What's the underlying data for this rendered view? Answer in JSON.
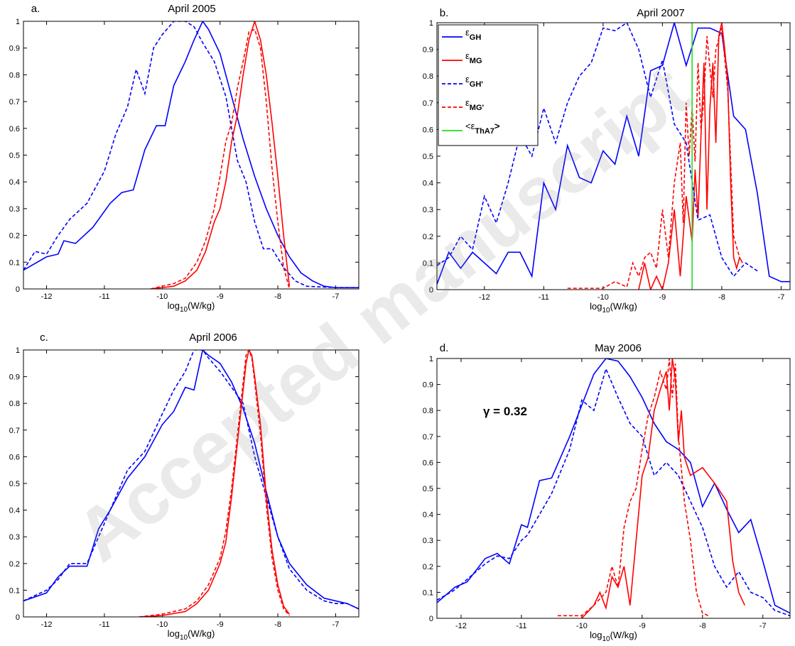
{
  "watermark": "Accepted manuscript",
  "chart_data": [
    {
      "type": "line",
      "panel_label": "a.",
      "title": "April 2005",
      "xlabel": [
        "log",
        "10",
        "(W/kg)"
      ],
      "xlim": [
        -12.4,
        -6.6
      ],
      "xticks": [
        -12,
        -11,
        -10,
        -9,
        -8,
        -7
      ],
      "ylim": [
        0,
        1
      ],
      "yticks": [
        0,
        0.1,
        0.2,
        0.3,
        0.4,
        0.5,
        0.6,
        0.7,
        0.8,
        0.9,
        1
      ],
      "series": [
        {
          "color": "#0000ff",
          "dash": false,
          "x": [
            -12.4,
            -12.0,
            -11.8,
            -11.7,
            -11.5,
            -11.2,
            -10.9,
            -10.7,
            -10.5,
            -10.3,
            -10.1,
            -9.95,
            -9.8,
            -9.6,
            -9.45,
            -9.3,
            -9.2,
            -9.0,
            -8.8,
            -8.6,
            -8.4,
            -8.2,
            -8.0,
            -7.8,
            -7.6,
            -7.4,
            -7.2,
            -7.0,
            -6.6
          ],
          "values": [
            0.07,
            0.12,
            0.13,
            0.18,
            0.17,
            0.23,
            0.32,
            0.36,
            0.37,
            0.52,
            0.61,
            0.61,
            0.76,
            0.85,
            0.93,
            1.0,
            0.97,
            0.88,
            0.72,
            0.56,
            0.42,
            0.3,
            0.2,
            0.12,
            0.06,
            0.03,
            0.01,
            0.005,
            0.005
          ]
        },
        {
          "color": "#0000ff",
          "dash": true,
          "x": [
            -12.4,
            -12.2,
            -12.0,
            -11.8,
            -11.6,
            -11.3,
            -11.0,
            -10.8,
            -10.6,
            -10.45,
            -10.3,
            -10.15,
            -10.0,
            -9.8,
            -9.6,
            -9.45,
            -9.3,
            -9.1,
            -8.9,
            -8.7,
            -8.55,
            -8.4,
            -8.25,
            -8.1,
            -7.9,
            -7.7,
            -7.5,
            -7.0,
            -6.6
          ],
          "values": [
            0.07,
            0.14,
            0.13,
            0.2,
            0.26,
            0.32,
            0.44,
            0.58,
            0.68,
            0.82,
            0.73,
            0.9,
            0.95,
            1.0,
            1.0,
            0.98,
            0.92,
            0.85,
            0.72,
            0.48,
            0.4,
            0.25,
            0.15,
            0.15,
            0.08,
            0.03,
            0.01,
            0.005,
            0.005
          ]
        },
        {
          "color": "#ff0000",
          "dash": false,
          "x": [
            -10.2,
            -10.0,
            -9.8,
            -9.6,
            -9.4,
            -9.25,
            -9.1,
            -9.0,
            -8.9,
            -8.8,
            -8.7,
            -8.6,
            -8.5,
            -8.4,
            -8.3,
            -8.2,
            -8.1,
            -8.0,
            -7.9,
            -7.8
          ],
          "values": [
            0,
            0.005,
            0.01,
            0.03,
            0.07,
            0.14,
            0.25,
            0.3,
            0.4,
            0.55,
            0.65,
            0.8,
            0.93,
            1.0,
            0.93,
            0.8,
            0.62,
            0.42,
            0.2,
            0.01
          ]
        },
        {
          "color": "#ff0000",
          "dash": true,
          "x": [
            -10.2,
            -10.0,
            -9.8,
            -9.6,
            -9.4,
            -9.25,
            -9.1,
            -9.0,
            -8.9,
            -8.8,
            -8.7,
            -8.6,
            -8.5,
            -8.4,
            -8.3,
            -8.2,
            -8.1,
            -8.0,
            -7.9,
            -7.8
          ],
          "values": [
            0,
            0.01,
            0.02,
            0.04,
            0.1,
            0.18,
            0.3,
            0.42,
            0.55,
            0.62,
            0.75,
            0.85,
            0.96,
            0.97,
            0.9,
            0.7,
            0.45,
            0.25,
            0.08,
            0
          ]
        }
      ]
    },
    {
      "type": "line",
      "panel_label": "b.",
      "title": "April 2007",
      "xlabel": [
        "log",
        "10",
        "(W/kg)"
      ],
      "xlim": [
        -12.8,
        -6.85
      ],
      "xticks": [
        -12,
        -11,
        -10,
        -9,
        -8,
        -7
      ],
      "ylim": [
        0,
        1
      ],
      "yticks": [
        0,
        0.1,
        0.2,
        0.3,
        0.4,
        0.5,
        0.6,
        0.7,
        0.8,
        0.9,
        1
      ],
      "series": [
        {
          "name": "ε",
          "name_sub": "GH",
          "color": "#0000ff",
          "dash": false,
          "x": [
            -12.8,
            -12.6,
            -12.4,
            -12.2,
            -12.0,
            -11.8,
            -11.6,
            -11.4,
            -11.2,
            -11.0,
            -10.8,
            -10.6,
            -10.4,
            -10.2,
            -10.0,
            -9.8,
            -9.6,
            -9.4,
            -9.2,
            -9.0,
            -8.8,
            -8.6,
            -8.4,
            -8.2,
            -8.0,
            -7.8,
            -7.6,
            -7.4,
            -7.2,
            -7.0,
            -6.85
          ],
          "values": [
            0.02,
            0.14,
            0.08,
            0.14,
            0.1,
            0.06,
            0.14,
            0.14,
            0.05,
            0.4,
            0.3,
            0.54,
            0.42,
            0.4,
            0.52,
            0.47,
            0.65,
            0.5,
            0.82,
            0.84,
            1.0,
            0.84,
            0.98,
            0.98,
            0.96,
            0.65,
            0.6,
            0.36,
            0.05,
            0.03,
            0.03
          ]
        },
        {
          "name": "ε",
          "name_sub": "MG",
          "color": "#ff0000",
          "dash": false,
          "x": [
            -9.4,
            -9.3,
            -9.2,
            -9.1,
            -9.0,
            -8.9,
            -8.8,
            -8.7,
            -8.6,
            -8.5,
            -8.45,
            -8.4,
            -8.35,
            -8.3,
            -8.25,
            -8.2,
            -8.15,
            -8.1,
            -8.05,
            -8.0,
            -7.95,
            -7.9,
            -7.85,
            -7.8,
            -7.75,
            -7.7,
            -7.65
          ],
          "values": [
            0,
            0.1,
            0,
            0.05,
            0.0,
            0.1,
            0.3,
            0.05,
            0.35,
            0.18,
            0.45,
            0.27,
            0.58,
            0.85,
            0.3,
            0.68,
            0.85,
            0.55,
            0.95,
            1.0,
            0.9,
            0.78,
            0.4,
            0.12,
            0.08,
            0.12,
            0.1
          ]
        },
        {
          "name": "ε",
          "name_sub": "GH'",
          "color": "#0000ff",
          "dash": true,
          "x": [
            -12.8,
            -12.6,
            -12.4,
            -12.2,
            -12.0,
            -11.8,
            -11.6,
            -11.4,
            -11.2,
            -11.0,
            -10.8,
            -10.6,
            -10.4,
            -10.2,
            -10.0,
            -9.8,
            -9.6,
            -9.4,
            -9.2,
            -9.0,
            -8.8,
            -8.6,
            -8.4,
            -8.2,
            -8.0,
            -7.8,
            -7.6,
            -7.4
          ],
          "values": [
            0.09,
            0.12,
            0.2,
            0.15,
            0.35,
            0.25,
            0.4,
            0.58,
            0.5,
            0.68,
            0.55,
            0.7,
            0.8,
            0.85,
            0.98,
            0.97,
            1.0,
            0.9,
            0.72,
            0.86,
            0.62,
            0.55,
            0.26,
            0.28,
            0.12,
            0.05,
            0.1,
            0.07
          ]
        },
        {
          "name": "ε",
          "name_sub": "MG'",
          "color": "#ff0000",
          "dash": true,
          "x": [
            -10.6,
            -10.0,
            -9.8,
            -9.6,
            -9.5,
            -9.4,
            -9.3,
            -9.2,
            -9.1,
            -9.0,
            -8.9,
            -8.8,
            -8.7,
            -8.65,
            -8.6,
            -8.55,
            -8.5,
            -8.45,
            -8.4,
            -8.35,
            -8.3,
            -8.25,
            -8.2,
            -8.15,
            -8.1,
            -8.0,
            -7.9,
            -7.8,
            -7.7
          ],
          "values": [
            0.005,
            0.005,
            0.03,
            0.01,
            0.1,
            0.05,
            0.12,
            0.14,
            0.08,
            0.3,
            0.12,
            0.4,
            0.55,
            0.25,
            0.7,
            0.5,
            0.68,
            0.48,
            0.85,
            0.6,
            0.72,
            0.95,
            0.83,
            0.72,
            0.9,
            0.98,
            0.75,
            0.2,
            0.12
          ]
        },
        {
          "name": "<ε",
          "name_sub": "ThA7",
          "name_end": ">",
          "color": "#22dd22",
          "dash": false,
          "x": [
            -8.5,
            -8.5
          ],
          "values": [
            0,
            1
          ]
        }
      ]
    },
    {
      "type": "line",
      "panel_label": "c.",
      "title": "April 2006",
      "xlabel": [
        "log",
        "10",
        "(W/kg)"
      ],
      "xlim": [
        -12.4,
        -6.6
      ],
      "xticks": [
        -12,
        -11,
        -10,
        -9,
        -8,
        -7
      ],
      "ylim": [
        0,
        1
      ],
      "yticks": [
        0,
        0.1,
        0.2,
        0.3,
        0.4,
        0.5,
        0.6,
        0.7,
        0.8,
        0.9,
        1
      ],
      "series": [
        {
          "color": "#0000ff",
          "dash": false,
          "x": [
            -12.4,
            -12.0,
            -11.8,
            -11.6,
            -11.3,
            -11.1,
            -10.9,
            -10.6,
            -10.3,
            -10.0,
            -9.8,
            -9.6,
            -9.45,
            -9.3,
            -9.2,
            -9.0,
            -8.8,
            -8.6,
            -8.4,
            -8.2,
            -8.0,
            -7.8,
            -7.5,
            -7.2,
            -7.0,
            -6.8,
            -6.6
          ],
          "values": [
            0.06,
            0.09,
            0.15,
            0.19,
            0.19,
            0.33,
            0.4,
            0.52,
            0.6,
            0.72,
            0.77,
            0.86,
            0.85,
            1.0,
            0.98,
            0.95,
            0.88,
            0.78,
            0.65,
            0.47,
            0.3,
            0.2,
            0.12,
            0.07,
            0.06,
            0.05,
            0.03
          ]
        },
        {
          "color": "#0000ff",
          "dash": true,
          "x": [
            -12.4,
            -12.0,
            -11.8,
            -11.6,
            -11.3,
            -11.1,
            -10.9,
            -10.6,
            -10.3,
            -10.0,
            -9.8,
            -9.6,
            -9.45,
            -9.3,
            -9.2,
            -9.0,
            -8.8,
            -8.6,
            -8.4,
            -8.2,
            -8.0,
            -7.8,
            -7.5,
            -7.2,
            -7.0,
            -6.8,
            -6.6
          ],
          "values": [
            0.06,
            0.1,
            0.14,
            0.2,
            0.2,
            0.3,
            0.4,
            0.55,
            0.62,
            0.76,
            0.85,
            0.92,
            1.0,
            1.0,
            0.97,
            0.92,
            0.86,
            0.8,
            0.6,
            0.45,
            0.3,
            0.18,
            0.1,
            0.06,
            0.05,
            0.05,
            0.03
          ]
        },
        {
          "color": "#ff0000",
          "dash": false,
          "x": [
            -10.4,
            -10.0,
            -9.6,
            -9.4,
            -9.2,
            -9.0,
            -8.9,
            -8.8,
            -8.7,
            -8.6,
            -8.55,
            -8.5,
            -8.45,
            -8.4,
            -8.3,
            -8.2,
            -8.1,
            -8.0,
            -7.9,
            -7.8
          ],
          "values": [
            0,
            0.005,
            0.02,
            0.05,
            0.1,
            0.2,
            0.28,
            0.45,
            0.65,
            0.85,
            0.95,
            1.0,
            0.98,
            0.9,
            0.72,
            0.45,
            0.25,
            0.12,
            0.04,
            0.01
          ]
        },
        {
          "color": "#ff0000",
          "dash": true,
          "x": [
            -10.4,
            -10.0,
            -9.6,
            -9.4,
            -9.2,
            -9.0,
            -8.9,
            -8.8,
            -8.7,
            -8.6,
            -8.55,
            -8.5,
            -8.45,
            -8.4,
            -8.3,
            -8.2,
            -8.1,
            -8.0,
            -7.9,
            -7.8
          ],
          "values": [
            0,
            0.01,
            0.03,
            0.06,
            0.12,
            0.22,
            0.32,
            0.48,
            0.68,
            0.88,
            0.98,
            1.0,
            0.97,
            0.88,
            0.68,
            0.42,
            0.22,
            0.1,
            0.03,
            0.005
          ]
        }
      ]
    },
    {
      "type": "line",
      "panel_label": "d.",
      "title": "May 2006",
      "xlabel": [
        "log",
        "10",
        "(W/kg)"
      ],
      "annotation": "γ = 0.32",
      "xlim": [
        -12.4,
        -6.55
      ],
      "xticks": [
        -12,
        -11,
        -10,
        -9,
        -8,
        -7
      ],
      "ylim": [
        0,
        1
      ],
      "yticks": [
        0,
        0.1,
        0.2,
        0.3,
        0.4,
        0.5,
        0.6,
        0.7,
        0.8,
        0.9,
        1
      ],
      "series": [
        {
          "color": "#0000ff",
          "dash": false,
          "x": [
            -12.4,
            -12.1,
            -11.9,
            -11.6,
            -11.4,
            -11.2,
            -11.0,
            -10.9,
            -10.7,
            -10.5,
            -10.2,
            -10.0,
            -9.8,
            -9.6,
            -9.4,
            -9.2,
            -9.0,
            -8.8,
            -8.6,
            -8.4,
            -8.2,
            -8.0,
            -7.8,
            -7.6,
            -7.4,
            -7.2,
            -7.0,
            -6.8,
            -6.55
          ],
          "values": [
            0.06,
            0.12,
            0.14,
            0.23,
            0.25,
            0.21,
            0.36,
            0.35,
            0.53,
            0.54,
            0.7,
            0.82,
            0.94,
            1.0,
            0.99,
            0.93,
            0.85,
            0.75,
            0.68,
            0.65,
            0.6,
            0.43,
            0.52,
            0.42,
            0.33,
            0.38,
            0.22,
            0.05,
            0.02
          ]
        },
        {
          "color": "#0000ff",
          "dash": true,
          "x": [
            -12.4,
            -12.1,
            -11.9,
            -11.6,
            -11.4,
            -11.2,
            -11.0,
            -10.9,
            -10.7,
            -10.5,
            -10.2,
            -10.0,
            -9.8,
            -9.6,
            -9.4,
            -9.2,
            -9.0,
            -8.8,
            -8.6,
            -8.4,
            -8.2,
            -8.0,
            -7.8,
            -7.6,
            -7.4,
            -7.2,
            -7.0,
            -6.8,
            -6.55
          ],
          "values": [
            0.07,
            0.11,
            0.15,
            0.21,
            0.24,
            0.23,
            0.3,
            0.32,
            0.4,
            0.48,
            0.65,
            0.84,
            0.8,
            0.96,
            0.85,
            0.75,
            0.7,
            0.55,
            0.6,
            0.55,
            0.45,
            0.35,
            0.2,
            0.12,
            0.18,
            0.1,
            0.08,
            0.03,
            0.01
          ]
        },
        {
          "color": "#ff0000",
          "dash": false,
          "x": [
            -10.0,
            -9.8,
            -9.7,
            -9.6,
            -9.5,
            -9.4,
            -9.3,
            -9.2,
            -9.1,
            -9.0,
            -8.9,
            -8.8,
            -8.7,
            -8.6,
            -8.55,
            -8.5,
            -8.45,
            -8.4,
            -8.35,
            -8.3,
            -8.2,
            -8.0,
            -7.8,
            -7.6,
            -7.5,
            -7.4,
            -7.3
          ],
          "values": [
            0,
            0.05,
            0.1,
            0.04,
            0.16,
            0.12,
            0.2,
            0.05,
            0.3,
            0.55,
            0.62,
            0.8,
            0.88,
            0.95,
            0.8,
            1.0,
            0.92,
            0.68,
            0.8,
            0.62,
            0.55,
            0.58,
            0.52,
            0.45,
            0.22,
            0.1,
            0.05
          ]
        },
        {
          "color": "#ff0000",
          "dash": true,
          "x": [
            -10.4,
            -10.0,
            -9.8,
            -9.6,
            -9.5,
            -9.4,
            -9.3,
            -9.2,
            -9.1,
            -9.0,
            -8.9,
            -8.8,
            -8.7,
            -8.6,
            -8.55,
            -8.5,
            -8.45,
            -8.4,
            -8.3,
            -8.2,
            -8.1,
            -8.0,
            -7.9
          ],
          "values": [
            0.01,
            0.01,
            0.05,
            0.1,
            0.2,
            0.12,
            0.35,
            0.45,
            0.5,
            0.65,
            0.78,
            0.85,
            0.95,
            0.88,
            1.0,
            0.85,
            0.98,
            0.7,
            0.45,
            0.3,
            0.1,
            0.02,
            0.01
          ]
        }
      ]
    }
  ]
}
